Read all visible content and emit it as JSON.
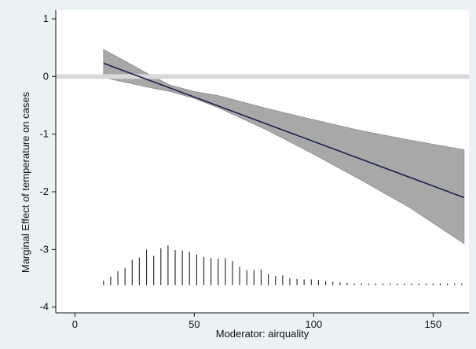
{
  "chart_data": {
    "type": "line",
    "xlabel": "Moderator: airquality",
    "ylabel": "Marginal Effect of temperature on cases",
    "xlim": [
      -8,
      165
    ],
    "ylim": [
      -4.1,
      1.15
    ],
    "x_ticks": [
      0,
      50,
      100,
      150
    ],
    "y_ticks": [
      1,
      0,
      -1,
      -2,
      -3,
      -4
    ],
    "grid": false,
    "reference_line": {
      "y": 0,
      "color": "#d9d9d9"
    },
    "marginal_effect": {
      "x": [
        12,
        163
      ],
      "y": [
        0.23,
        -2.1
      ],
      "color": "#1a1f4e"
    },
    "confidence_band": {
      "x": [
        12,
        20,
        30,
        40,
        50,
        60,
        80,
        100,
        120,
        140,
        163
      ],
      "lower": [
        -0.02,
        -0.09,
        -0.18,
        -0.26,
        -0.38,
        -0.54,
        -0.92,
        -1.35,
        -1.8,
        -2.27,
        -2.9
      ],
      "upper": [
        0.47,
        0.29,
        0.06,
        -0.15,
        -0.26,
        -0.33,
        -0.55,
        -0.75,
        -0.94,
        -1.1,
        -1.27
      ],
      "color": "#a8a8a8"
    },
    "histogram": {
      "baseline": -3.62,
      "x": [
        12,
        15,
        18,
        21,
        24,
        27,
        30,
        33,
        36,
        39,
        42,
        45,
        48,
        51,
        54,
        57,
        60,
        63,
        66,
        69,
        72,
        75,
        78,
        81,
        84,
        87,
        90,
        93,
        96,
        99,
        102,
        105,
        108,
        111,
        114,
        117,
        120,
        123,
        126,
        129,
        132,
        135,
        138,
        141,
        144,
        147,
        150,
        153,
        156,
        159,
        162
      ],
      "top": [
        -3.54,
        -3.47,
        -3.38,
        -3.32,
        -3.18,
        -3.14,
        -3.0,
        -3.11,
        -2.98,
        -2.93,
        -3.01,
        -3.02,
        -3.04,
        -3.09,
        -3.13,
        -3.15,
        -3.16,
        -3.15,
        -3.2,
        -3.3,
        -3.36,
        -3.36,
        -3.35,
        -3.43,
        -3.46,
        -3.45,
        -3.5,
        -3.51,
        -3.52,
        -3.52,
        -3.53,
        -3.55,
        -3.56,
        -3.57,
        -3.58,
        -3.59,
        -3.59,
        -3.59,
        -3.59,
        -3.59,
        -3.59,
        -3.59,
        -3.59,
        -3.59,
        -3.59,
        -3.59,
        -3.59,
        -3.59,
        -3.59,
        -3.59,
        -3.59
      ],
      "color": "#333333"
    }
  }
}
